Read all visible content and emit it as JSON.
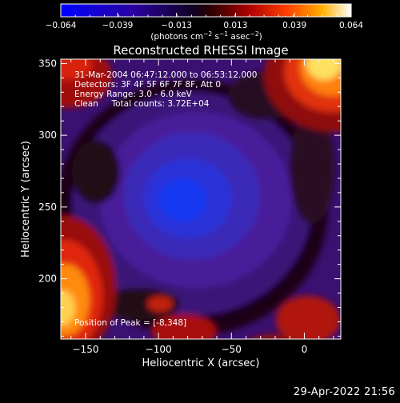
{
  "chart_data": {
    "type": "heatmap",
    "title": "Reconstructed RHESSI Image",
    "xlabel": "Heliocentric X (arcsec)",
    "ylabel": "Heliocentric Y (arcsec)",
    "xlim": [
      -167,
      25
    ],
    "ylim": [
      158,
      353
    ],
    "xticks": [
      -150,
      -100,
      -50,
      0
    ],
    "yticks": [
      200,
      250,
      300,
      350
    ],
    "colorbar": {
      "ticks": [
        -0.064,
        -0.039,
        -0.013,
        0.013,
        0.039,
        0.064
      ],
      "tick_labels": [
        "−0.064",
        "−0.039",
        "−0.013",
        "0.013",
        "0.039",
        "0.064"
      ],
      "units_prefix": "(photons cm",
      "units_exp1": "−2",
      "units_mid": " s",
      "units_exp2": "−1",
      "units_mid2": " asec",
      "units_exp3": "−2",
      "units_suffix": ")"
    },
    "annotations": [
      "31-Mar-2004 06:47:12.000 to 06:53:12.000",
      "Detectors: 3F 4F 5F 6F 7F 8F, Att 0",
      "Energy Range: 3.0 - 6.0 keV",
      "Clean     Total counts: 3.72E+04"
    ],
    "peak_label": "Position of Peak = [-8,348]",
    "timestamp": "29-Apr-2022 21:56"
  },
  "colors": {
    "low": "#0000ff",
    "mid": "#000000",
    "high": "#ffffff",
    "accent_red": "#c01010",
    "accent_yellow": "#ffe030"
  }
}
